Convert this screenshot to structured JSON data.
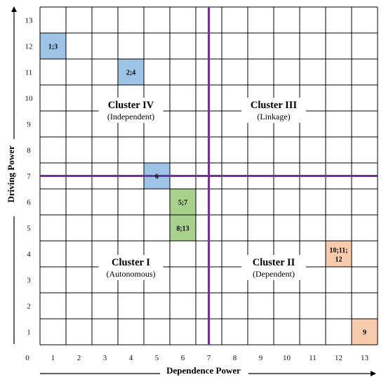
{
  "chart_data": {
    "type": "scatter",
    "xlabel": "Dependence Power",
    "ylabel": "Driving Power",
    "xlim": [
      0,
      13
    ],
    "ylim": [
      0,
      13
    ],
    "x_ticks": [
      "0",
      "1",
      "2",
      "3",
      "4",
      "5",
      "6",
      "7",
      "8",
      "9",
      "10",
      "11",
      "12",
      "13"
    ],
    "y_ticks": [
      "1",
      "2",
      "3",
      "4",
      "5",
      "6",
      "7",
      "8",
      "9",
      "10",
      "11",
      "12",
      "13"
    ],
    "grid": true,
    "divider": {
      "x": 7,
      "y": 7,
      "color": "#7030a0"
    },
    "points": [
      {
        "label": "1;3",
        "x": 1,
        "y": 12,
        "color": "#9dc3e6"
      },
      {
        "label": "2;4",
        "x": 4,
        "y": 11,
        "color": "#9dc3e6"
      },
      {
        "label": "6",
        "x": 5,
        "y": 7,
        "color": "#9dc3e6"
      },
      {
        "label": "5;7",
        "x": 6,
        "y": 6,
        "color": "#a9d18e"
      },
      {
        "label": "8;13",
        "x": 6,
        "y": 5,
        "color": "#a9d18e"
      },
      {
        "label": "10;11; 12",
        "x": 12,
        "y": 4,
        "color": "#f8cbad"
      },
      {
        "label": "9",
        "x": 13,
        "y": 1,
        "color": "#f8cbad"
      }
    ],
    "clusters": [
      {
        "name": "Cluster IV",
        "subtitle": "(Independent)",
        "quadrant": "top-left"
      },
      {
        "name": "Cluster III",
        "subtitle": "(Linkage)",
        "quadrant": "top-right"
      },
      {
        "name": "Cluster I",
        "subtitle": "(Autonomous)",
        "quadrant": "bottom-left"
      },
      {
        "name": "Cluster II",
        "subtitle": "(Dependent)",
        "quadrant": "bottom-right"
      }
    ]
  }
}
